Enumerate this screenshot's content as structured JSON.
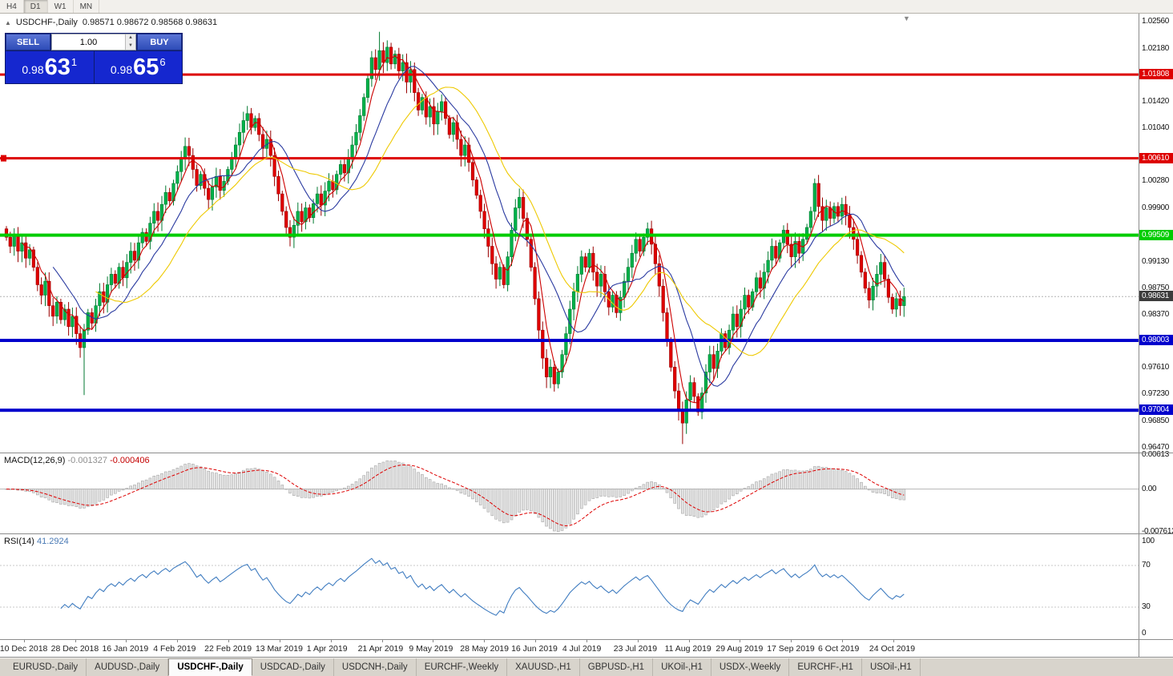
{
  "toolbar": {
    "timeframes": [
      {
        "label": "H4",
        "active": false
      },
      {
        "label": "D1",
        "active": true
      },
      {
        "label": "W1",
        "active": false
      },
      {
        "label": "MN",
        "active": false
      }
    ]
  },
  "chart_header": {
    "collapse_icon": "▲",
    "symbol": "USDCHF-,Daily",
    "ohlc": "0.98571 0.98672 0.98568 0.98631"
  },
  "shift_marker_icon": "▼",
  "trade_panel": {
    "sell_label": "SELL",
    "buy_label": "BUY",
    "volume": "1.00",
    "sell_price": {
      "prefix": "0.98",
      "big": "63",
      "sup": "1"
    },
    "buy_price": {
      "prefix": "0.98",
      "big": "65",
      "sup": "6"
    }
  },
  "price_axis_ticks": [
    "1.02560",
    "1.02180",
    "1.01420",
    "1.01040",
    "1.00280",
    "0.99900",
    "0.99130",
    "0.98750",
    "0.98370",
    "0.97610",
    "0.97230",
    "0.96850",
    "0.96470"
  ],
  "hlines": [
    {
      "label": "1.01808",
      "color": "#dd0000",
      "thickness": 3
    },
    {
      "label": "1.00610",
      "color": "#dd0000",
      "thickness": 3,
      "anchor_left": true
    },
    {
      "label": "0.99509",
      "color": "#00cc00",
      "thickness": 4
    },
    {
      "label": "0.98003",
      "color": "#0000cc",
      "thickness": 4
    },
    {
      "label": "0.97004",
      "color": "#0000cc",
      "thickness": 4
    }
  ],
  "current_price": {
    "label": "0.98631",
    "color": "#3c3c3c"
  },
  "macd_panel": {
    "name": "MACD(12,26,9)",
    "value_main": "-0.001327",
    "value_signal": "-0.000406",
    "axis": [
      "0.00613",
      "0.00",
      "-0.007612"
    ]
  },
  "rsi_panel": {
    "name": "RSI(14)",
    "value": "41.2924",
    "axis": [
      "100",
      "70",
      "30",
      "0"
    ],
    "levels": [
      70,
      30
    ]
  },
  "date_axis": [
    "10 Dec 2018",
    "28 Dec 2018",
    "16 Jan 2019",
    "4 Feb 2019",
    "22 Feb 2019",
    "13 Mar 2019",
    "1 Apr 2019",
    "21 Apr 2019",
    "9 May 2019",
    "28 May 2019",
    "16 Jun 2019",
    "4 Jul 2019",
    "23 Jul 2019",
    "11 Aug 2019",
    "29 Aug 2019",
    "17 Sep 2019",
    "6 Oct 2019",
    "24 Oct 2019"
  ],
  "tabs": [
    {
      "label": "EURUSD-,Daily",
      "active": false
    },
    {
      "label": "AUDUSD-,Daily",
      "active": false
    },
    {
      "label": "USDCHF-,Daily",
      "active": true
    },
    {
      "label": "USDCAD-,Daily",
      "active": false
    },
    {
      "label": "USDCNH-,Daily",
      "active": false
    },
    {
      "label": "EURCHF-,Weekly",
      "active": false
    },
    {
      "label": "XAUUSD-,H1",
      "active": false
    },
    {
      "label": "GBPUSD-,H1",
      "active": false
    },
    {
      "label": "UKOil-,H1",
      "active": false
    },
    {
      "label": "USDX-,Weekly",
      "active": false
    },
    {
      "label": "EURCHF-,H1",
      "active": false
    },
    {
      "label": "USOil-,H1",
      "active": false
    }
  ],
  "chart_data": {
    "type": "candlestick",
    "symbol": "USDCHF",
    "timeframe": "Daily",
    "title": "USDCHF-,Daily",
    "ylim": [
      0.9641,
      1.0268
    ],
    "first_open": 0.996,
    "closes": [
      0.9948,
      0.9935,
      0.995,
      0.9928,
      0.994,
      0.9918,
      0.993,
      0.9905,
      0.988,
      0.9865,
      0.9885,
      0.985,
      0.9835,
      0.9855,
      0.983,
      0.9845,
      0.982,
      0.9835,
      0.981,
      0.979,
      0.9815,
      0.984,
      0.9825,
      0.985,
      0.987,
      0.9855,
      0.988,
      0.9895,
      0.9882,
      0.9905,
      0.989,
      0.9912,
      0.9928,
      0.9915,
      0.994,
      0.9955,
      0.9942,
      0.9968,
      0.9985,
      0.9972,
      0.9995,
      1.0012,
      1.0,
      1.0025,
      1.0042,
      1.006,
      1.0078,
      1.0065,
      1.0045,
      1.0022,
      1.0038,
      1.0018,
      1.0002,
      1.002,
      1.0035,
      1.0015,
      1.0028,
      1.0045,
      1.0062,
      1.008,
      1.0098,
      1.0115,
      1.0125,
      1.0105,
      1.0118,
      1.0095,
      1.0075,
      1.0088,
      1.0065,
      1.0035,
      1.001,
      0.9985,
      0.9962,
      0.9948,
      0.9965,
      0.9985,
      0.997,
      0.999,
      0.9976,
      0.9996,
      1.001,
      0.9994,
      1.0014,
      1.0028,
      1.0016,
      1.0038,
      1.0052,
      1.004,
      1.0062,
      1.008,
      1.0098,
      1.0122,
      1.0148,
      1.0175,
      1.0205,
      1.0188,
      1.0215,
      1.0198,
      1.022,
      1.0196,
      1.021,
      1.0186,
      1.0198,
      1.017,
      1.0188,
      1.0155,
      1.013,
      1.0148,
      1.012,
      1.0135,
      1.011,
      1.0128,
      1.0142,
      1.0118,
      1.0095,
      1.0112,
      1.0088,
      1.0065,
      1.008,
      1.0055,
      1.003,
      1.0008,
      0.9985,
      0.996,
      0.9935,
      0.991,
      0.9888,
      0.9905,
      0.988,
      0.992,
      0.9958,
      0.999,
      1.0005,
      0.9975,
      0.9945,
      0.9905,
      0.986,
      0.9815,
      0.9775,
      0.9748,
      0.9762,
      0.9738,
      0.9755,
      0.978,
      0.981,
      0.9845,
      0.987,
      0.9895,
      0.992,
      0.9905,
      0.9925,
      0.9898,
      0.9878,
      0.9895,
      0.987,
      0.9848,
      0.9865,
      0.984,
      0.9862,
      0.9885,
      0.9905,
      0.9925,
      0.9945,
      0.9928,
      0.9948,
      0.996,
      0.9938,
      0.991,
      0.9878,
      0.984,
      0.98,
      0.9762,
      0.9728,
      0.97,
      0.9682,
      0.9715,
      0.974,
      0.972,
      0.9698,
      0.9725,
      0.9755,
      0.978,
      0.976,
      0.9785,
      0.981,
      0.979,
      0.9815,
      0.9838,
      0.982,
      0.9845,
      0.9865,
      0.9848,
      0.987,
      0.989,
      0.9875,
      0.9898,
      0.9915,
      0.9935,
      0.9918,
      0.994,
      0.9958,
      0.9938,
      0.992,
      0.9942,
      0.9925,
      0.9945,
      0.9962,
      0.9985,
      1.0025,
      0.9992,
      0.9972,
      0.999,
      0.9975,
      0.9992,
      0.9978,
      0.9995,
      0.998,
      0.9962,
      0.9945,
      0.9922,
      0.9898,
      0.9875,
      0.9858,
      0.9878,
      0.9895,
      0.9912,
      0.9888,
      0.9862,
      0.9845,
      0.986,
      0.985,
      0.98631
    ],
    "wick_overrides": {
      "20": {
        "low": 0.9722
      },
      "96": {
        "high": 1.0242
      },
      "140": {
        "low": 0.9732
      },
      "174": {
        "low": 0.9652
      },
      "208": {
        "high": 1.0032
      }
    },
    "moving_averages": [
      {
        "period": 5,
        "color": "#cc0000"
      },
      {
        "period": 13,
        "color": "#2a3aa0"
      },
      {
        "period": 24,
        "color": "#eec900"
      }
    ],
    "macd_range": [
      -0.0078,
      0.0064
    ],
    "rsi_range": [
      0,
      100
    ],
    "colors": {
      "up": "#00b24a",
      "up_edge": "#007a30",
      "down": "#e00000",
      "down_edge": "#990000",
      "macd_hist": "#e2e2e2",
      "macd_hist_edge": "#a8a8a8",
      "macd_signal": "#dd0000",
      "rsi_line": "#3f7cc0",
      "bid_line": "#b4b4b4"
    }
  }
}
